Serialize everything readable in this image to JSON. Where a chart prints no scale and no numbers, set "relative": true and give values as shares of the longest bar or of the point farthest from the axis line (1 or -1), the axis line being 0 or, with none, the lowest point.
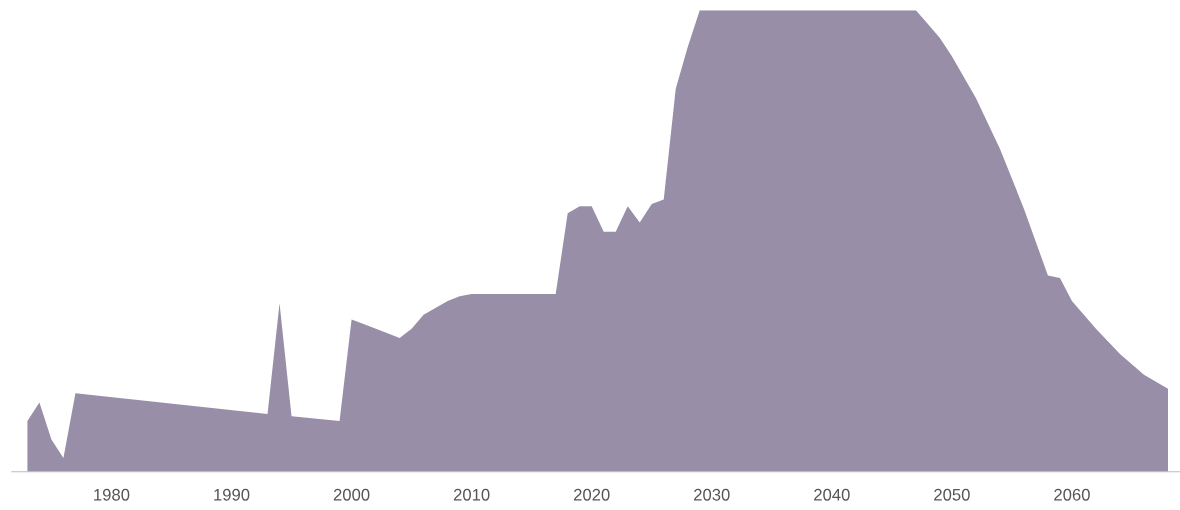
{
  "chart_data": {
    "type": "area",
    "relative": true,
    "color": "#998ea8",
    "x": [
      1973,
      1974,
      1975,
      1976,
      1977,
      1993,
      1994,
      1995,
      1999,
      2000,
      2001,
      2003,
      2004,
      2005,
      2006,
      2008,
      2009,
      2010,
      2017,
      2018,
      2019,
      2020,
      2021,
      2022,
      2023,
      2024,
      2025,
      2026,
      2027,
      2028,
      2029,
      2047,
      2048,
      2049,
      2050,
      2052,
      2054,
      2056,
      2058,
      2059,
      2060,
      2062,
      2064,
      2066,
      2068
    ],
    "values": [
      0.11,
      0.15,
      0.07,
      0.03,
      0.17,
      0.125,
      0.365,
      0.12,
      0.11,
      0.33,
      0.32,
      0.3,
      0.29,
      0.31,
      0.34,
      0.37,
      0.38,
      0.385,
      0.385,
      0.56,
      0.575,
      0.575,
      0.52,
      0.52,
      0.575,
      0.54,
      0.58,
      0.59,
      0.83,
      0.92,
      1.0,
      1.0,
      0.97,
      0.94,
      0.9,
      0.81,
      0.7,
      0.57,
      0.425,
      0.42,
      0.37,
      0.31,
      0.255,
      0.21,
      0.18
    ],
    "xlim": [
      1971.7,
      2069
    ],
    "xticks": [
      1980,
      1990,
      2000,
      2010,
      2020,
      2030,
      2040,
      2050,
      2060
    ],
    "grid": false,
    "legend": false
  }
}
